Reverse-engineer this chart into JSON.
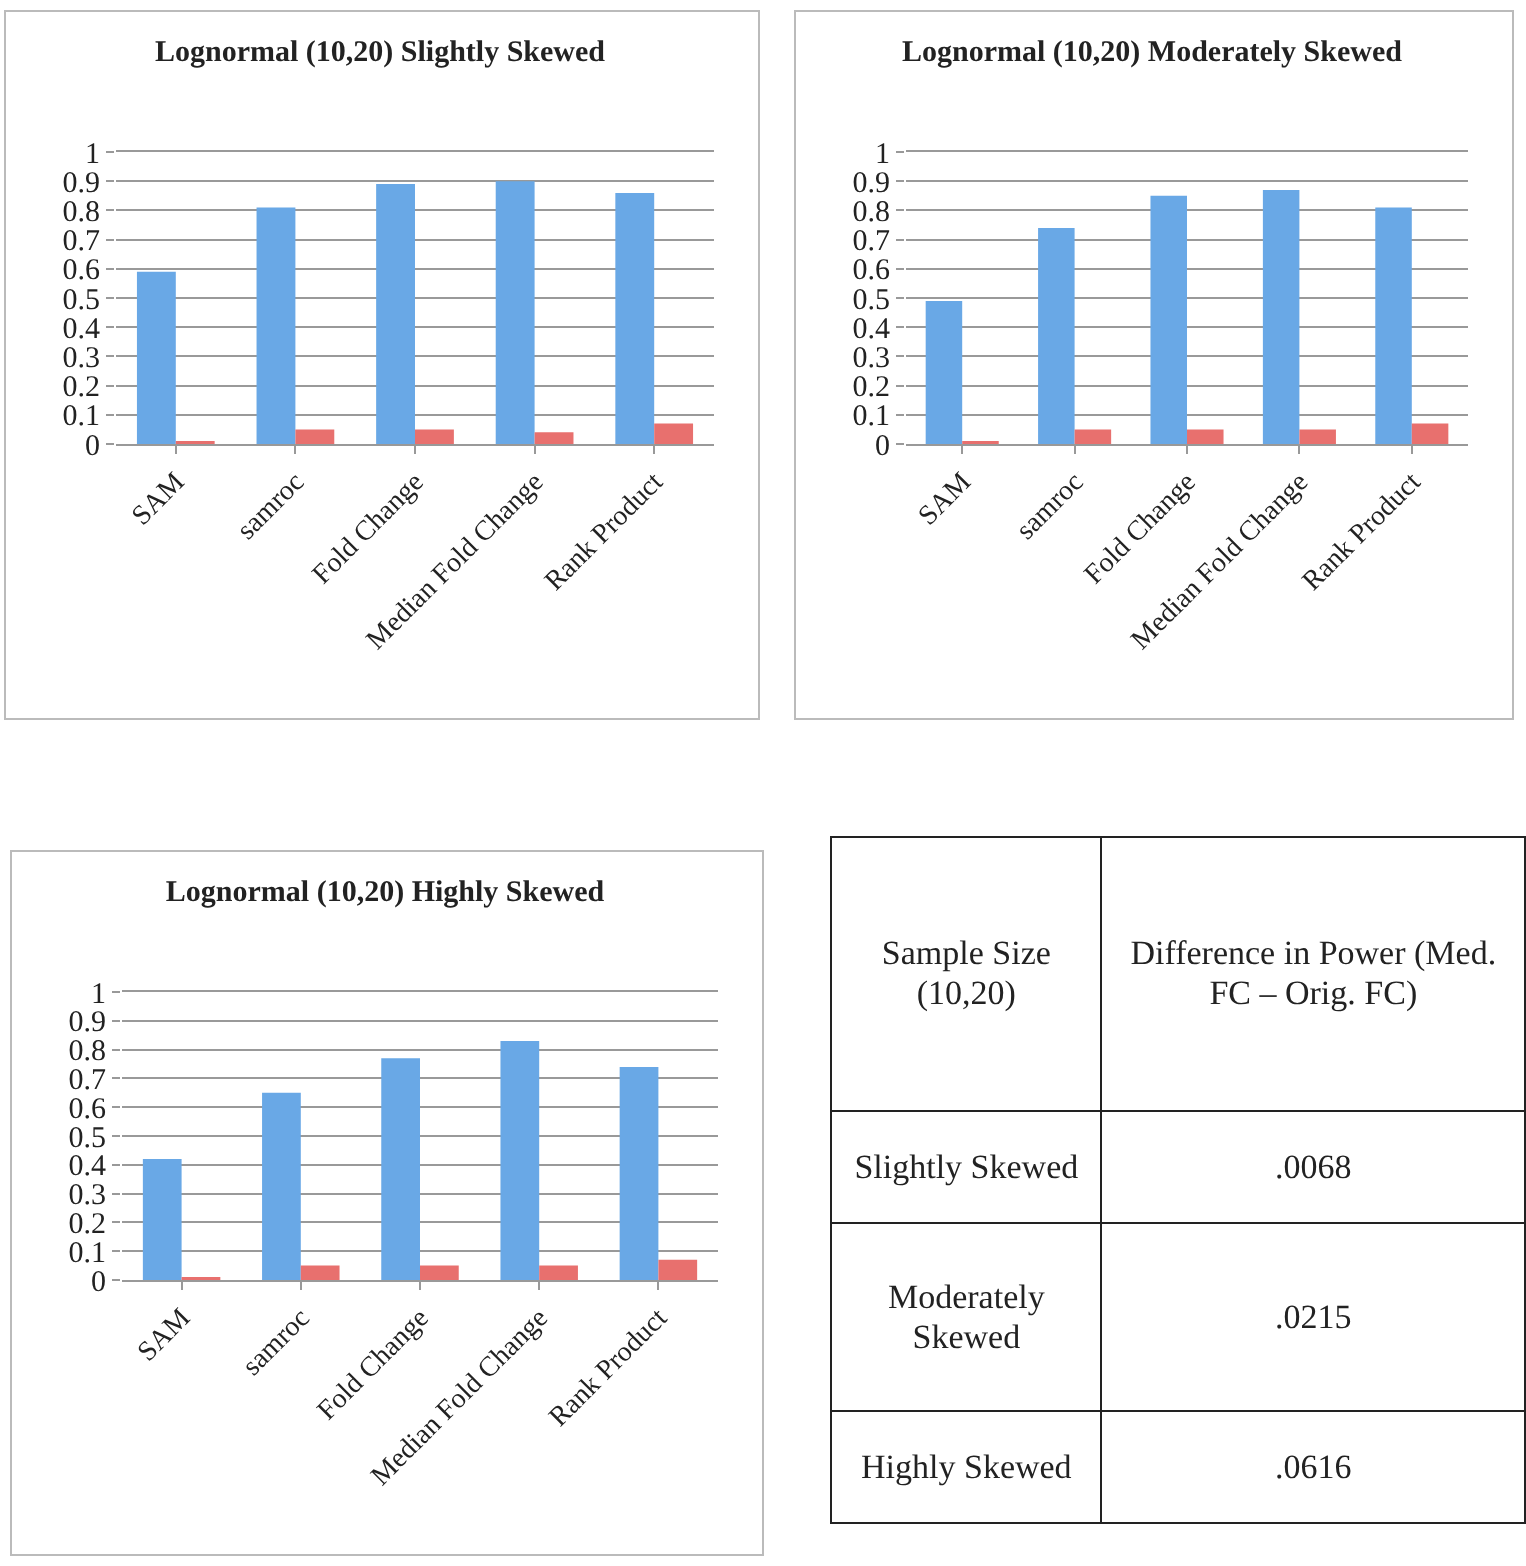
{
  "chart_data": [
    {
      "type": "bar",
      "title": "Lognormal (10,20) Slightly Skewed",
      "categories": [
        "SAM",
        "samroc",
        "Fold Change",
        "Median Fold Change",
        "Rank Product"
      ],
      "series": [
        {
          "color": "#69a8e6",
          "values": [
            0.59,
            0.81,
            0.89,
            0.9,
            0.86
          ]
        },
        {
          "color": "#e8706e",
          "values": [
            0.01,
            0.05,
            0.05,
            0.04,
            0.07
          ]
        }
      ],
      "ylim": [
        0,
        1
      ],
      "yticks": [
        0,
        0.1,
        0.2,
        0.3,
        0.4,
        0.5,
        0.6,
        0.7,
        0.8,
        0.9,
        1
      ],
      "grid": "y"
    },
    {
      "type": "bar",
      "title": "Lognormal (10,20) Moderately Skewed",
      "categories": [
        "SAM",
        "samroc",
        "Fold Change",
        "Median Fold Change",
        "Rank Product"
      ],
      "series": [
        {
          "color": "#69a8e6",
          "values": [
            0.49,
            0.74,
            0.85,
            0.87,
            0.81
          ]
        },
        {
          "color": "#e8706e",
          "values": [
            0.01,
            0.05,
            0.05,
            0.05,
            0.07
          ]
        }
      ],
      "ylim": [
        0,
        1
      ],
      "yticks": [
        0,
        0.1,
        0.2,
        0.3,
        0.4,
        0.5,
        0.6,
        0.7,
        0.8,
        0.9,
        1
      ],
      "grid": "y"
    },
    {
      "type": "bar",
      "title": "Lognormal (10,20) Highly Skewed",
      "categories": [
        "SAM",
        "samroc",
        "Fold Change",
        "Median Fold Change",
        "Rank Product"
      ],
      "series": [
        {
          "color": "#69a8e6",
          "values": [
            0.42,
            0.65,
            0.77,
            0.83,
            0.74
          ]
        },
        {
          "color": "#e8706e",
          "values": [
            0.01,
            0.05,
            0.05,
            0.05,
            0.07
          ]
        }
      ],
      "ylim": [
        0,
        1
      ],
      "yticks": [
        0,
        0.1,
        0.2,
        0.3,
        0.4,
        0.5,
        0.6,
        0.7,
        0.8,
        0.9,
        1
      ],
      "grid": "y"
    },
    {
      "type": "other",
      "annotations": [
        "Sample Size (10,20)",
        "Difference in Power (Med. FC – Orig. FC)",
        "Slightly Skewed",
        ".0068",
        "Moderately Skewed",
        ".0215",
        "Highly Skewed",
        ".0616"
      ]
    }
  ]
}
